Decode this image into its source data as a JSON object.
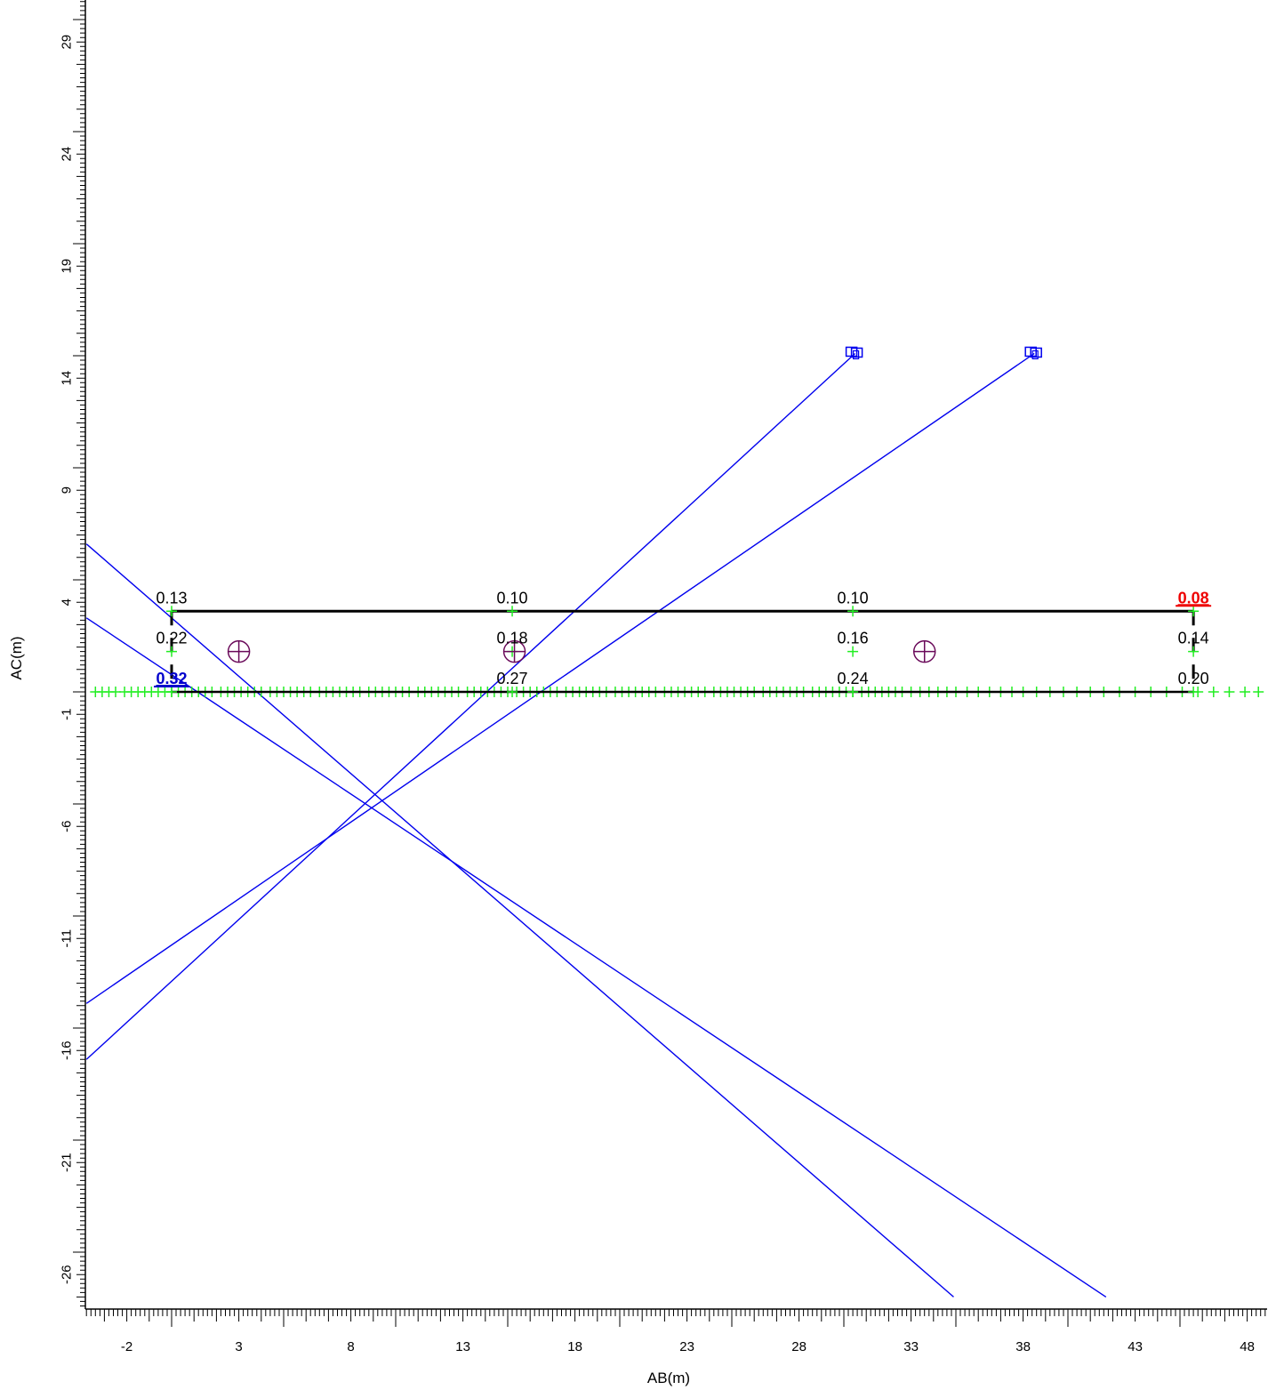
{
  "chart_data": {
    "type": "scatter",
    "xlabel": "AB(m)",
    "ylabel": "AC(m)",
    "xlim": [
      -4.2,
      48.8
    ],
    "ylim": [
      -27.5,
      30.9
    ],
    "x_ticks": [
      -2,
      3,
      8,
      13,
      18,
      23,
      28,
      33,
      38,
      43,
      48
    ],
    "y_ticks": [
      29,
      24,
      19,
      14,
      9,
      4,
      -1,
      -6,
      -11,
      -16,
      -21,
      -26
    ],
    "grid": false,
    "colors": {
      "lines": "#0000ee",
      "points": "#22ee22",
      "frame": "#000000",
      "circles": "#6a0a5a",
      "highlight_max": "#0000cc",
      "highlight_min": "#ee0000"
    },
    "grid_rows": [
      {
        "y": 3.6,
        "points": [
          {
            "x": 0,
            "value": "0.13"
          },
          {
            "x": 15.2,
            "value": "0.10"
          },
          {
            "x": 30.4,
            "value": "0.10"
          },
          {
            "x": 45.6,
            "value": "0.08",
            "highlight": "min"
          }
        ]
      },
      {
        "y": 1.8,
        "points": [
          {
            "x": 0,
            "value": "0.22"
          },
          {
            "x": 15.2,
            "value": "0.18"
          },
          {
            "x": 30.4,
            "value": "0.16"
          },
          {
            "x": 45.6,
            "value": "0.14"
          }
        ]
      },
      {
        "y": 0,
        "points": [
          {
            "x": 0,
            "value": "0.32",
            "highlight": "max"
          },
          {
            "x": 15.2,
            "value": "0.27"
          },
          {
            "x": 30.4,
            "value": "0.24"
          },
          {
            "x": 45.6,
            "value": "0.20"
          }
        ]
      }
    ],
    "circle_markers": [
      {
        "x": 3.0,
        "y": 1.8
      },
      {
        "x": 15.3,
        "y": 1.8
      },
      {
        "x": 33.6,
        "y": 1.8
      }
    ],
    "source_markers": [
      {
        "x": 30.5,
        "y": 15.1
      },
      {
        "x": 38.5,
        "y": 15.1
      }
    ],
    "lines": [
      {
        "from": [
          -3.8,
          6.6
        ],
        "to": [
          34.9,
          -27.0
        ]
      },
      {
        "from": [
          -3.8,
          3.3
        ],
        "to": [
          41.7,
          -27.0
        ]
      },
      {
        "from": [
          30.5,
          15.1
        ],
        "to": [
          -3.8,
          -16.4
        ]
      },
      {
        "from": [
          38.5,
          15.1
        ],
        "to": [
          -3.8,
          -13.9
        ]
      }
    ],
    "axis_points_y": 0,
    "axis_points_x": [
      -3.4,
      -3.1,
      -2.8,
      -2.5,
      -2.1,
      -1.8,
      -1.5,
      -1.2,
      -0.9,
      -0.6,
      -0.3,
      0,
      0.3,
      0.6,
      0.9,
      1.2,
      1.5,
      1.8,
      2.2,
      2.5,
      2.8,
      3.1,
      3.4,
      3.7,
      4.0,
      4.4,
      4.7,
      5.0,
      5.3,
      5.6,
      5.9,
      6.2,
      6.6,
      6.9,
      7.2,
      7.5,
      7.8,
      8.1,
      8.4,
      8.8,
      9.1,
      9.4,
      9.7,
      10.0,
      10.3,
      10.6,
      11.0,
      11.3,
      11.6,
      11.9,
      12.2,
      12.5,
      12.8,
      13.2,
      13.5,
      13.8,
      14.1,
      14.4,
      14.7,
      15.0,
      15.4,
      15.7,
      16.0,
      16.3,
      16.6,
      16.9,
      17.2,
      17.6,
      17.9,
      18.2,
      18.5,
      18.8,
      19.1,
      19.4,
      19.8,
      20.1,
      20.4,
      20.7,
      21.0,
      21.3,
      21.6,
      22.0,
      22.3,
      22.6,
      22.9,
      23.2,
      23.5,
      23.8,
      24.2,
      24.5,
      24.8,
      25.1,
      25.4,
      25.7,
      26.0,
      26.4,
      26.7,
      27.0,
      27.3,
      27.6,
      27.9,
      28.2,
      28.6,
      28.9,
      29.2,
      29.5,
      29.8,
      30.1,
      30.4,
      30.8,
      31.1,
      31.4,
      31.7,
      32.0,
      32.3,
      32.6,
      33.0,
      33.4,
      33.8,
      34.2,
      34.6,
      35.0,
      35.5,
      36.0,
      36.5,
      37.0,
      37.5,
      38.0,
      38.6,
      39.2,
      39.8,
      40.4,
      41.0,
      41.6,
      42.3,
      43.0,
      43.7,
      44.4,
      45.1,
      45.8,
      46.5,
      47.2,
      47.9,
      48.5
    ]
  }
}
